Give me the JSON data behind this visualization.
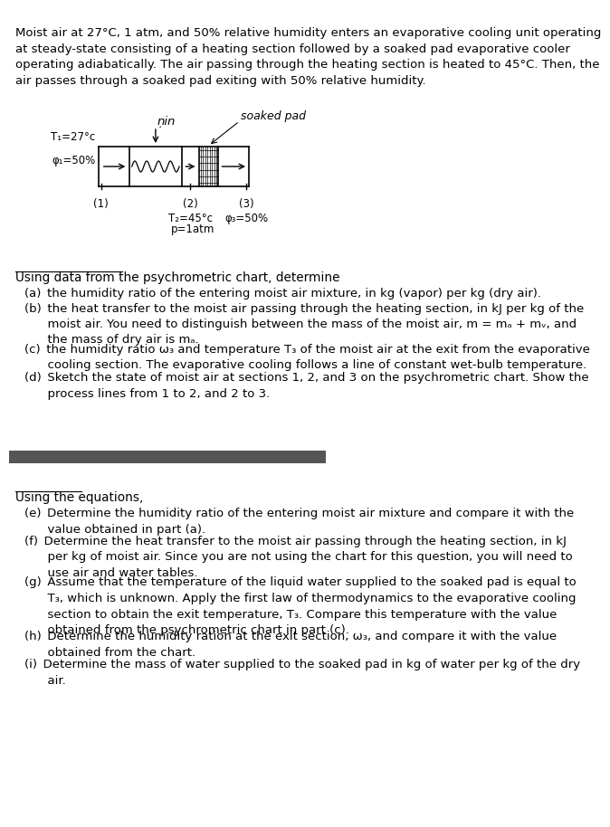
{
  "bg_color": "#ffffff",
  "intro_text": "Moist air at 27°C, 1 atm, and 50% relative humidity enters an evaporative cooling unit operating\nat steady-state consisting of a heating section followed by a soaked pad evaporative cooler\noperating adiabatically. The air passing through the heating section is heated to 45°C. Then, the\nair passes through a soaked pad exiting with 50% relative humidity.",
  "diagram_label_T1": "T₁=27°c",
  "diagram_label_phi1": "φ₁=50%",
  "diagram_label_qin": "ṇin",
  "diagram_label_soaked": "soaked pad",
  "diagram_label_T2": "T₂=45°c",
  "diagram_label_p": "p=1atm",
  "diagram_label_1": "(1)",
  "diagram_label_2": "(2)",
  "diagram_label_3": "(3)",
  "diagram_label_phi3": "φ₃=50%",
  "section1_header": "Using data from the psychrometric chart, determine",
  "items_a_d": [
    "(a) the humidity ratio of the entering moist air mixture, in kg (vapor) per kg (dry air).",
    "(b) the heat transfer to the moist air passing through the heating section, in kJ per kg of the\n      moist air. You need to distinguish between the mass of the moist air, m = mₐ + mᵥ, and\n      the mass of dry air is mₐ.",
    "(c) the humidity ratio ω₃ and temperature T₃ of the moist air at the exit from the evaporative\n      cooling section. The evaporative cooling follows a line of constant wet-bulb temperature.",
    "(d) Sketch the state of moist air at sections 1, 2, and 3 on the psychrometric chart. Show the\n      process lines from 1 to 2, and 2 to 3."
  ],
  "divider_color": "#555555",
  "section2_header": "Using the equations,",
  "items_e_i": [
    "(e) Determine the humidity ratio of the entering moist air mixture and compare it with the\n      value obtained in part (a).",
    "(f) Determine the heat transfer to the moist air passing through the heating section, in kJ\n      per kg of moist air. Since you are not using the chart for this question, you will need to\n      use air and water tables.",
    "(g) Assume that the temperature of the liquid water supplied to the soaked pad is equal to\n      T₃, which is unknown. Apply the first law of thermodynamics to the evaporative cooling\n      section to obtain the exit temperature, T₃. Compare this temperature with the value\n      obtained from the psychrometric chart in part (c).",
    "(h) Determine the humidity ration at the exit section, ω₃, and compare it with the value\n      obtained from the chart.",
    "(i) Determine the mass of water supplied to the soaked pad in kg of water per kg of the dry\n      air."
  ],
  "font_size_intro": 9.5,
  "font_size_body": 9.5,
  "font_size_header": 9.8
}
